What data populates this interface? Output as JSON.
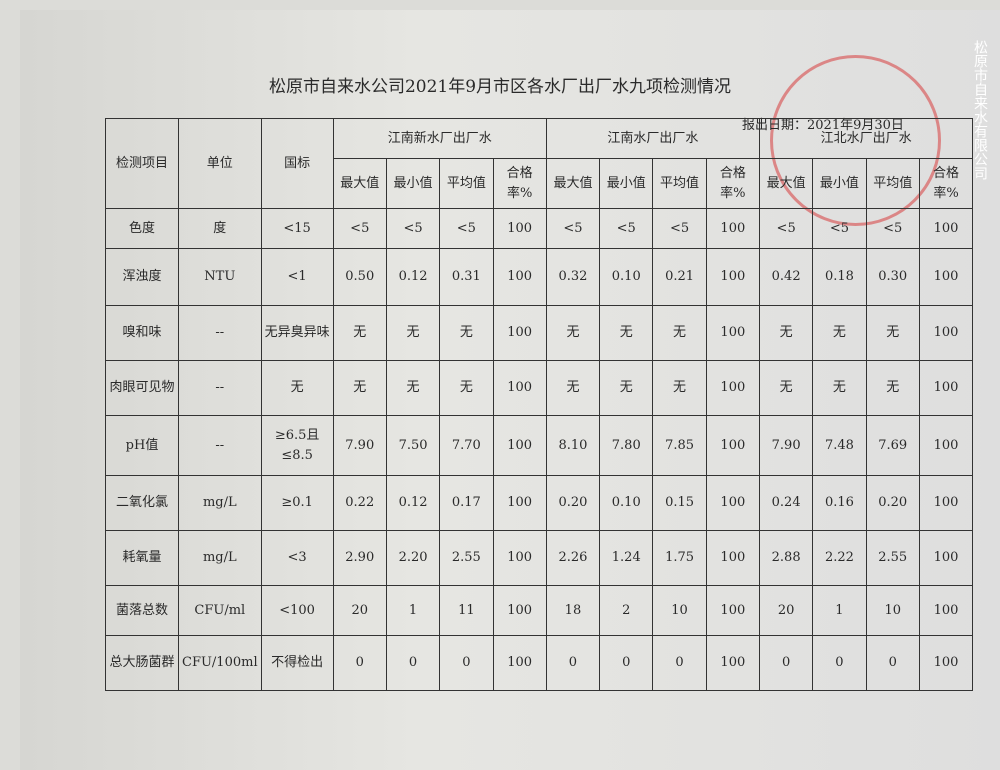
{
  "header": {
    "title": "松原市自来水公司2021年9月市区各水厂出厂水九项检测情况",
    "date": "报出日期：2021年9月30日"
  },
  "watermark": "松原市自来水有限公司",
  "table": {
    "head": [
      "检测项目",
      "单位",
      "国标"
    ],
    "groups": [
      "江南新水厂出厂水",
      "江南水厂出厂水",
      "江北水厂出厂水"
    ],
    "subhead": [
      "最大值",
      "最小值",
      "平均值",
      "合格率%"
    ],
    "rows": [
      [
        "色度",
        "度",
        "<15",
        "<5",
        "<5",
        "<5",
        "100",
        "<5",
        "<5",
        "<5",
        "100",
        "<5",
        "<5",
        "<5",
        "100"
      ],
      [
        "浑浊度",
        "NTU",
        "<1",
        "0.50",
        "0.12",
        "0.31",
        "100",
        "0.32",
        "0.10",
        "0.21",
        "100",
        "0.42",
        "0.18",
        "0.30",
        "100"
      ],
      [
        "嗅和味",
        "--",
        "无异臭异味",
        "无",
        "无",
        "无",
        "100",
        "无",
        "无",
        "无",
        "100",
        "无",
        "无",
        "无",
        "100"
      ],
      [
        "肉眼可见物",
        "--",
        "无",
        "无",
        "无",
        "无",
        "100",
        "无",
        "无",
        "无",
        "100",
        "无",
        "无",
        "无",
        "100"
      ],
      [
        "pH值",
        "--",
        "≥6.5且≤8.5",
        "7.90",
        "7.50",
        "7.70",
        "100",
        "8.10",
        "7.80",
        "7.85",
        "100",
        "7.90",
        "7.48",
        "7.69",
        "100"
      ],
      [
        "二氧化氯",
        "mg/L",
        "≥0.1",
        "0.22",
        "0.12",
        "0.17",
        "100",
        "0.20",
        "0.10",
        "0.15",
        "100",
        "0.24",
        "0.16",
        "0.20",
        "100"
      ],
      [
        "耗氧量",
        "mg/L",
        "<3",
        "2.90",
        "2.20",
        "2.55",
        "100",
        "2.26",
        "1.24",
        "1.75",
        "100",
        "2.88",
        "2.22",
        "2.55",
        "100"
      ],
      [
        "菌落总数",
        "CFU/ml",
        "<100",
        "20",
        "1",
        "11",
        "100",
        "18",
        "2",
        "10",
        "100",
        "20",
        "1",
        "10",
        "100"
      ],
      [
        "总大肠菌群",
        "CFU/100ml",
        "不得检出",
        "0",
        "0",
        "0",
        "100",
        "0",
        "0",
        "0",
        "100",
        "0",
        "0",
        "0",
        "100"
      ]
    ]
  }
}
